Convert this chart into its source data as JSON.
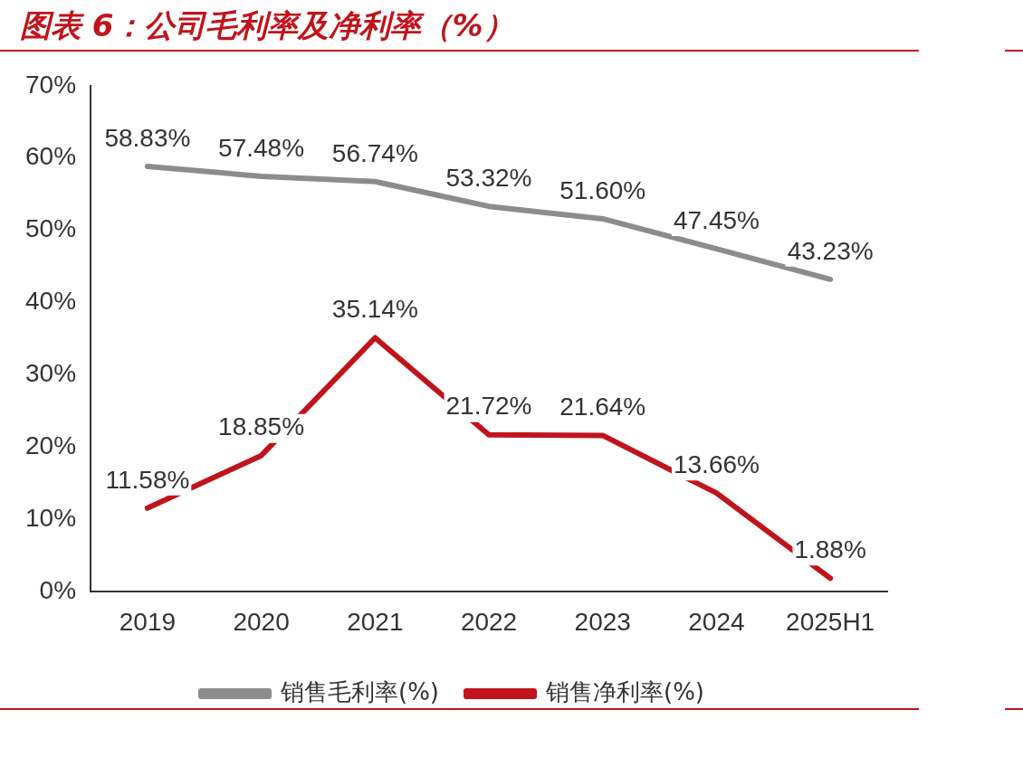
{
  "chart_data": {
    "type": "line",
    "title": "图表 6：公司毛利率及净利率（%）",
    "categories": [
      "2019",
      "2020",
      "2021",
      "2022",
      "2023",
      "2024",
      "2025H1"
    ],
    "series": [
      {
        "name": "销售毛利率(%)",
        "color": "#8c8c8c",
        "values": [
          58.83,
          57.48,
          56.74,
          53.32,
          51.6,
          47.45,
          43.23
        ],
        "value_labels": [
          "58.83%",
          "57.48%",
          "56.74%",
          "53.32%",
          "51.60%",
          "47.45%",
          "43.23%"
        ]
      },
      {
        "name": "销售净利率(%)",
        "color": "#c0141c",
        "values": [
          11.58,
          18.85,
          35.14,
          21.72,
          21.64,
          13.66,
          1.88
        ],
        "value_labels": [
          "11.58%",
          "18.85%",
          "35.14%",
          "21.72%",
          "21.64%",
          "13.66%",
          "1.88%"
        ]
      }
    ],
    "ylim": [
      0,
      70
    ],
    "yticks": [
      {
        "value": 0,
        "label": "0%"
      },
      {
        "value": 10,
        "label": "10%"
      },
      {
        "value": 20,
        "label": "20%"
      },
      {
        "value": 30,
        "label": "30%"
      },
      {
        "value": 40,
        "label": "40%"
      },
      {
        "value": 50,
        "label": "50%"
      },
      {
        "value": 60,
        "label": "60%"
      },
      {
        "value": 70,
        "label": "70%"
      }
    ],
    "grid": false,
    "legend": "bottom",
    "marker": "none",
    "line_style": "solid"
  }
}
